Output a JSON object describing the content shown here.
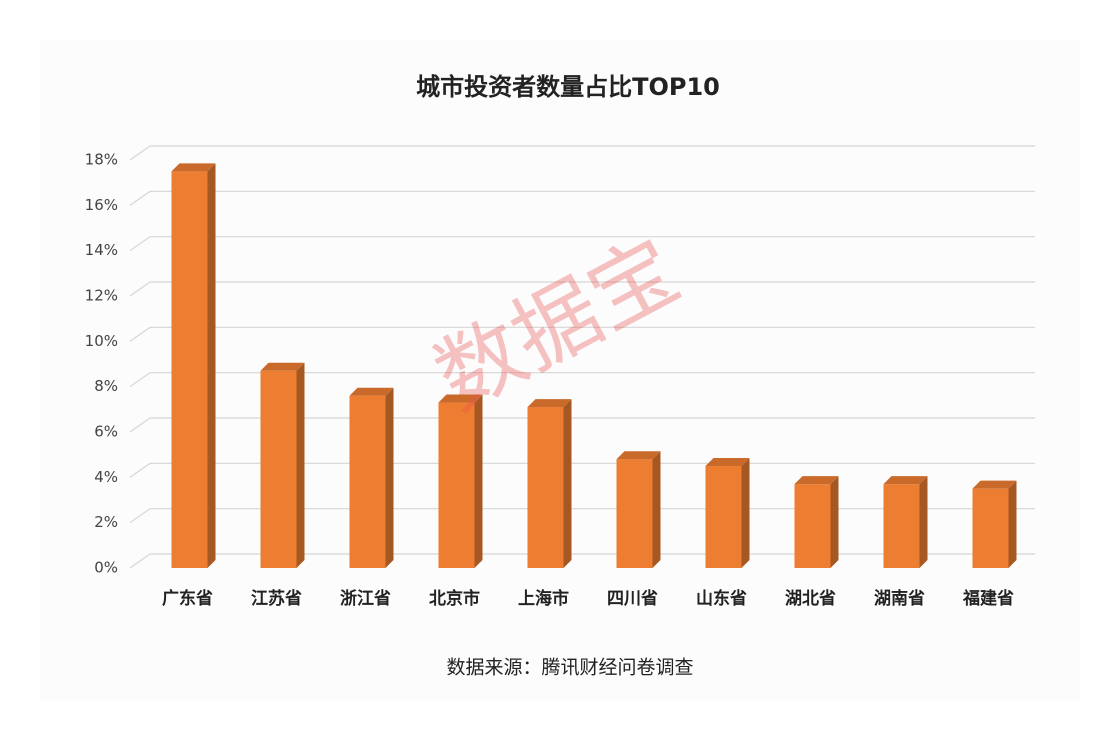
{
  "chart_data": {
    "type": "bar3d",
    "title": "城市投资者数量占比TOP10",
    "categories": [
      "广东省",
      "江苏省",
      "浙江省",
      "北京市",
      "上海市",
      "四川省",
      "山东省",
      "湖北省",
      "湖南省",
      "福建省"
    ],
    "values": [
      17.5,
      8.7,
      7.6,
      7.3,
      7.1,
      4.8,
      4.5,
      3.7,
      3.7,
      3.5
    ],
    "color": "#ed7d31",
    "ylim": [
      0,
      18
    ],
    "yticks": [
      {
        "value": 0,
        "label": "0%"
      },
      {
        "value": 2,
        "label": "2%"
      },
      {
        "value": 4,
        "label": "4%"
      },
      {
        "value": 6,
        "label": "6%"
      },
      {
        "value": 8,
        "label": "8%"
      },
      {
        "value": 10,
        "label": "10%"
      },
      {
        "value": 12,
        "label": "12%"
      },
      {
        "value": 14,
        "label": "14%"
      },
      {
        "value": 16,
        "label": "16%"
      },
      {
        "value": 18,
        "label": "18%"
      }
    ],
    "grid": true,
    "source": "数据来源：腾讯财经问卷调查",
    "watermark": "数据宝"
  }
}
